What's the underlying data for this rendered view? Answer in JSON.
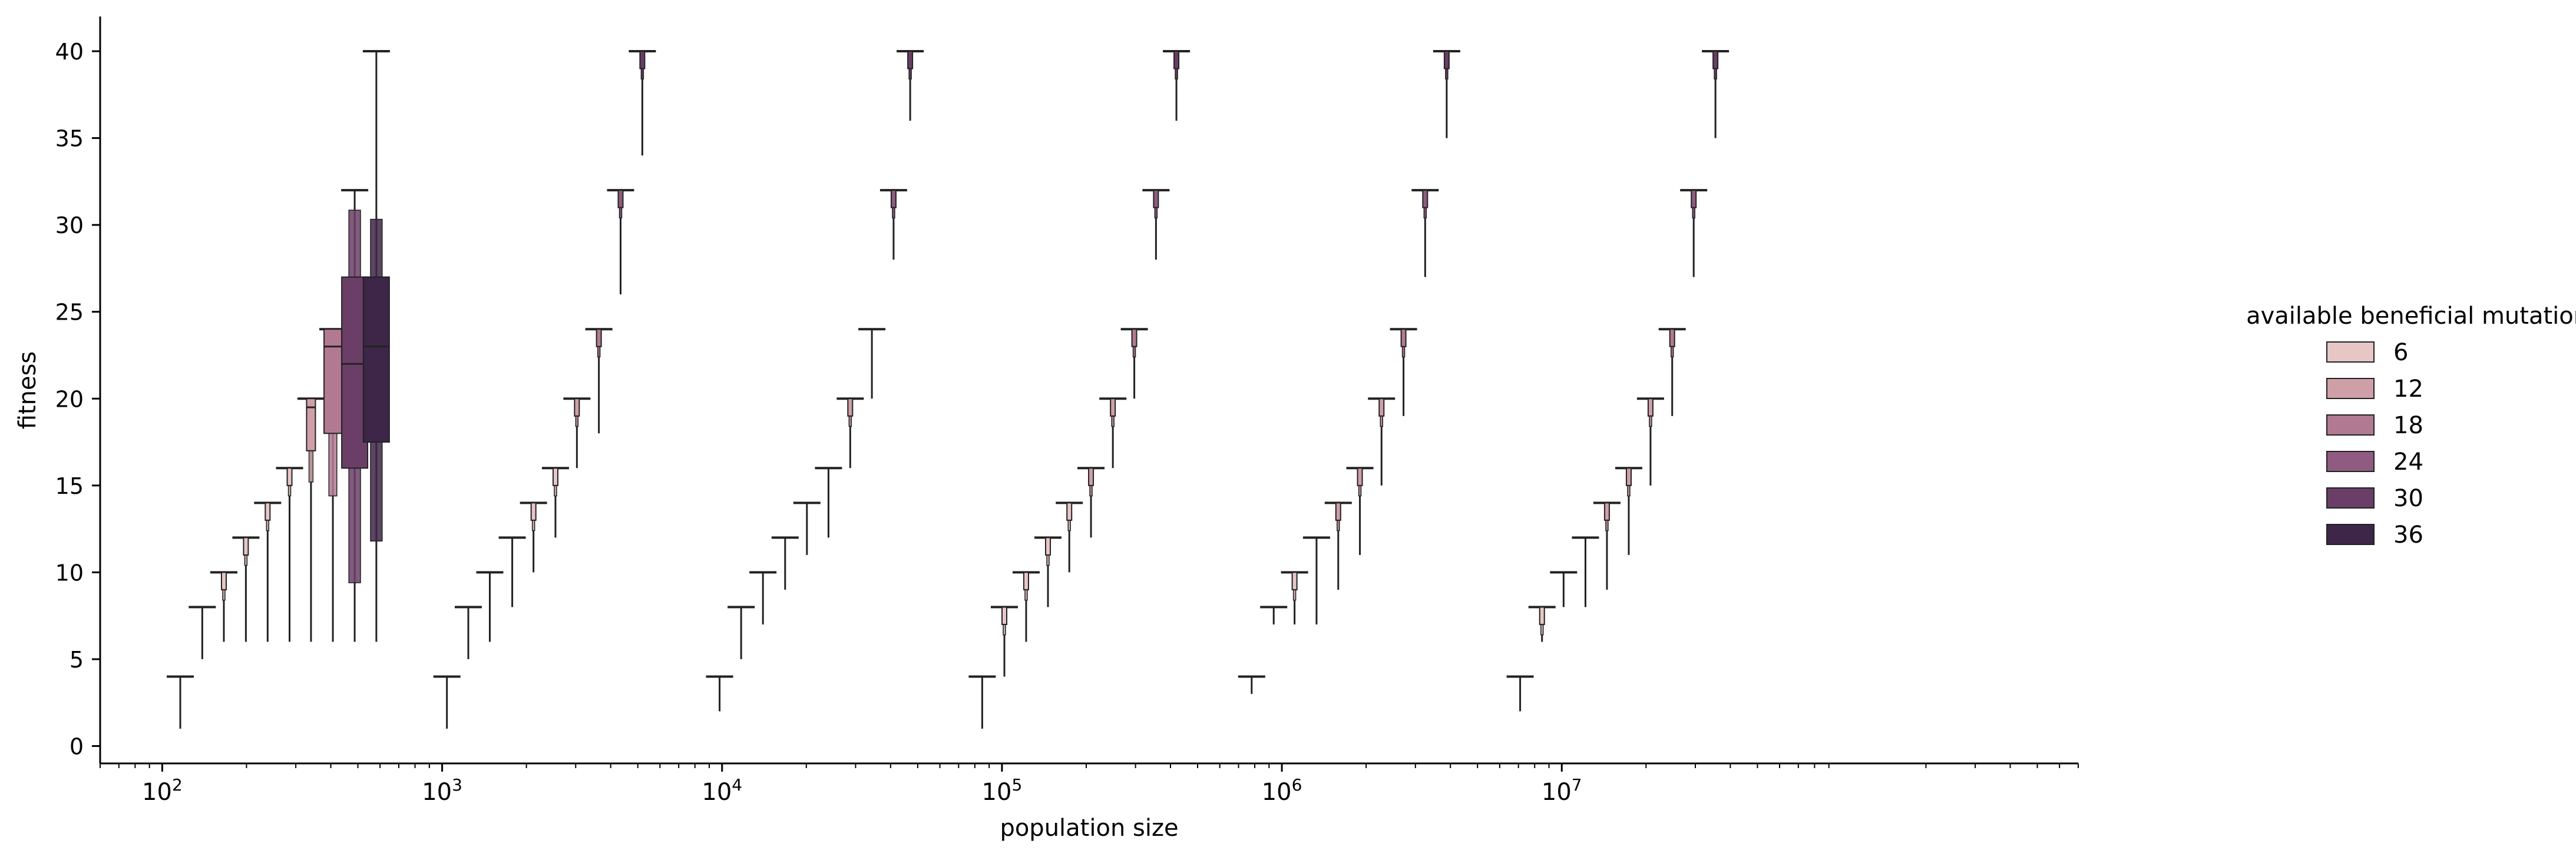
{
  "chart_data": {
    "type": "boxen",
    "xlabel": "population size",
    "ylabel": "fitness",
    "xscale": "log",
    "xlim": [
      60,
      700000000
    ],
    "ylim": [
      -1,
      42
    ],
    "yticks": [
      0,
      5,
      10,
      15,
      20,
      25,
      30,
      35,
      40
    ],
    "xticks": [
      {
        "value": 100,
        "base": "10",
        "exp": "2"
      },
      {
        "value": 1000,
        "base": "10",
        "exp": "3"
      },
      {
        "value": 10000,
        "base": "10",
        "exp": "4"
      },
      {
        "value": 100000,
        "base": "10",
        "exp": "5"
      },
      {
        "value": 1000000,
        "base": "10",
        "exp": "6"
      },
      {
        "value": 10000000,
        "base": "10",
        "exp": "7"
      }
    ],
    "legend": {
      "title": "available beneficial mutations",
      "placement": "right",
      "entries": [
        {
          "label": "6",
          "color": "#e8c6c6"
        },
        {
          "label": "12",
          "color": "#cf9fa7"
        },
        {
          "label": "18",
          "color": "#b27a92"
        },
        {
          "label": "24",
          "color": "#8f5b80"
        },
        {
          "label": "30",
          "color": "#6a3e66"
        },
        {
          "label": "36",
          "color": "#3d2648"
        }
      ]
    },
    "groups": [
      {
        "x": 116,
        "series": "6",
        "min": 1,
        "max": 4
      },
      {
        "x": 139,
        "series": "6",
        "min": 5,
        "max": 8
      },
      {
        "x": 166,
        "series": "6",
        "min": 6,
        "max": 10,
        "box": [
          9,
          10
        ]
      },
      {
        "x": 199,
        "series": "6",
        "min": 6,
        "max": 12,
        "box": [
          11,
          12
        ]
      },
      {
        "x": 238,
        "series": "6",
        "min": 6,
        "max": 14,
        "box": [
          13,
          14
        ]
      },
      {
        "x": 285,
        "series": "6",
        "min": 6,
        "max": 16,
        "box": [
          15,
          16
        ]
      },
      {
        "x": 340,
        "series": "12",
        "min": 6,
        "max": 20,
        "box": [
          17,
          20
        ],
        "median": 19.5
      },
      {
        "x": 407,
        "series": "18",
        "min": 6,
        "max": 24,
        "box": [
          18,
          24
        ],
        "median": 23
      },
      {
        "x": 487,
        "series": "30",
        "min": 6,
        "max": 32,
        "box": [
          16,
          27
        ],
        "median": 22
      },
      {
        "x": 582,
        "series": "36",
        "min": 6,
        "max": 40,
        "box": [
          17.5,
          27
        ],
        "median": 23
      },
      {
        "x": 1040,
        "series": "6",
        "min": 1,
        "max": 4
      },
      {
        "x": 1240,
        "series": "6",
        "min": 5,
        "max": 8
      },
      {
        "x": 1480,
        "series": "6",
        "min": 6,
        "max": 10
      },
      {
        "x": 1780,
        "series": "6",
        "min": 8,
        "max": 12
      },
      {
        "x": 2120,
        "series": "6",
        "min": 10,
        "max": 14,
        "box": [
          13,
          14
        ]
      },
      {
        "x": 2540,
        "series": "6",
        "min": 12,
        "max": 16,
        "box": [
          15,
          16
        ]
      },
      {
        "x": 3030,
        "series": "12",
        "min": 16,
        "max": 20,
        "box": [
          19,
          20
        ]
      },
      {
        "x": 3630,
        "series": "18",
        "min": 18,
        "max": 24,
        "box": [
          23,
          24
        ]
      },
      {
        "x": 4340,
        "series": "24",
        "min": 26,
        "max": 32,
        "box": [
          31,
          32
        ]
      },
      {
        "x": 5190,
        "series": "30",
        "min": 34,
        "max": 40,
        "box": [
          39,
          40
        ]
      },
      {
        "x": 9800,
        "series": "6",
        "min": 2,
        "max": 4
      },
      {
        "x": 11700,
        "series": "6",
        "min": 5,
        "max": 8
      },
      {
        "x": 14000,
        "series": "6",
        "min": 7,
        "max": 10
      },
      {
        "x": 16800,
        "series": "6",
        "min": 9,
        "max": 12
      },
      {
        "x": 20100,
        "series": "6",
        "min": 11,
        "max": 14
      },
      {
        "x": 24000,
        "series": "6",
        "min": 12,
        "max": 16
      },
      {
        "x": 28700,
        "series": "12",
        "min": 16,
        "max": 20,
        "box": [
          19,
          20
        ]
      },
      {
        "x": 34300,
        "series": "18",
        "min": 20,
        "max": 24
      },
      {
        "x": 41000,
        "series": "24",
        "min": 28,
        "max": 32,
        "box": [
          31,
          32
        ]
      },
      {
        "x": 47000,
        "series": "30",
        "min": 36,
        "max": 40,
        "box": [
          39,
          40
        ]
      },
      {
        "x": 85000,
        "series": "6",
        "min": 1,
        "max": 4
      },
      {
        "x": 102000,
        "series": "6",
        "min": 4,
        "max": 8,
        "box": [
          7,
          8
        ]
      },
      {
        "x": 122000,
        "series": "6",
        "min": 6,
        "max": 10,
        "box": [
          9,
          10
        ]
      },
      {
        "x": 146000,
        "series": "6",
        "min": 8,
        "max": 12,
        "box": [
          11,
          12
        ]
      },
      {
        "x": 174000,
        "series": "6",
        "min": 10,
        "max": 14,
        "box": [
          13,
          14
        ]
      },
      {
        "x": 208000,
        "series": "12",
        "min": 12,
        "max": 16,
        "box": [
          15,
          16
        ]
      },
      {
        "x": 249000,
        "series": "12",
        "min": 16,
        "max": 20,
        "box": [
          19,
          20
        ]
      },
      {
        "x": 297000,
        "series": "18",
        "min": 20,
        "max": 24,
        "box": [
          23,
          24
        ]
      },
      {
        "x": 355000,
        "series": "24",
        "min": 28,
        "max": 32,
        "box": [
          31,
          32
        ]
      },
      {
        "x": 420000,
        "series": "30",
        "min": 36,
        "max": 40,
        "box": [
          39,
          40
        ]
      },
      {
        "x": 780000,
        "series": "6",
        "min": 3,
        "max": 4
      },
      {
        "x": 935000,
        "series": "6",
        "min": 7,
        "max": 8
      },
      {
        "x": 1110000,
        "series": "6",
        "min": 7,
        "max": 10,
        "box": [
          9,
          10
        ]
      },
      {
        "x": 1330000,
        "series": "6",
        "min": 7,
        "max": 12
      },
      {
        "x": 1590000,
        "series": "12",
        "min": 9,
        "max": 14,
        "box": [
          13,
          14
        ]
      },
      {
        "x": 1900000,
        "series": "12",
        "min": 11,
        "max": 16,
        "box": [
          15,
          16
        ]
      },
      {
        "x": 2270000,
        "series": "12",
        "min": 15,
        "max": 20,
        "box": [
          19,
          20
        ]
      },
      {
        "x": 2720000,
        "series": "18",
        "min": 19,
        "max": 24,
        "box": [
          23,
          24
        ]
      },
      {
        "x": 3250000,
        "series": "24",
        "min": 27,
        "max": 32,
        "box": [
          31,
          32
        ]
      },
      {
        "x": 3880000,
        "series": "30",
        "min": 35,
        "max": 40,
        "box": [
          39,
          40
        ]
      },
      {
        "x": 7100000,
        "series": "6",
        "min": 2,
        "max": 4
      },
      {
        "x": 8500000,
        "series": "6",
        "min": 6,
        "max": 8,
        "box": [
          7,
          8
        ]
      },
      {
        "x": 10150000,
        "series": "6",
        "min": 8,
        "max": 10
      },
      {
        "x": 12150000,
        "series": "6",
        "min": 8,
        "max": 12
      },
      {
        "x": 14500000,
        "series": "12",
        "min": 9,
        "max": 14,
        "box": [
          13,
          14
        ]
      },
      {
        "x": 17350000,
        "series": "12",
        "min": 11,
        "max": 16,
        "box": [
          15,
          16
        ]
      },
      {
        "x": 20750000,
        "series": "12",
        "min": 15,
        "max": 20,
        "box": [
          19,
          20
        ]
      },
      {
        "x": 24800000,
        "series": "18",
        "min": 19,
        "max": 24,
        "box": [
          23,
          24
        ]
      },
      {
        "x": 29600000,
        "series": "24",
        "min": 27,
        "max": 32,
        "box": [
          31,
          32
        ]
      },
      {
        "x": 35400000,
        "series": "30",
        "min": 35,
        "max": 40,
        "box": [
          39,
          40
        ]
      }
    ]
  }
}
